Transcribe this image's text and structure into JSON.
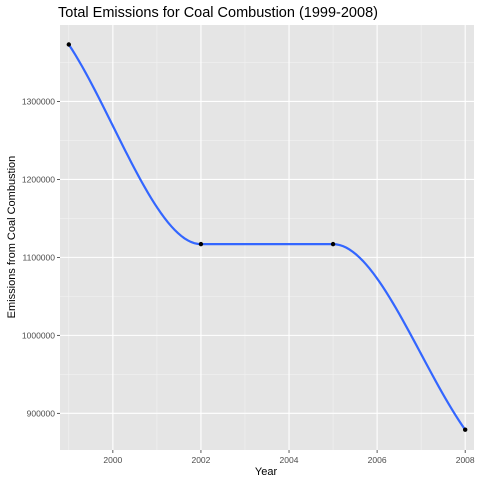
{
  "chart_data": {
    "type": "line",
    "title": "Total Emissions for Coal Combustion (1999-2008)",
    "xlabel": "Year",
    "ylabel": "Emissions from Coal Combustion",
    "x": [
      1999,
      2002,
      2005,
      2008
    ],
    "series": [
      {
        "values": [
          1373000,
          1117000,
          1117000,
          879000
        ]
      }
    ],
    "xlim": [
      1998.8,
      2008.2
    ],
    "ylim": [
      853000,
      1398000
    ],
    "x_ticks": [
      2000,
      2002,
      2004,
      2006,
      2008
    ],
    "x_tick_labels": [
      "2000",
      "2002",
      "2004",
      "2006",
      "2008"
    ],
    "y_ticks": [
      900000,
      1000000,
      1100000,
      1200000,
      1300000
    ],
    "y_tick_labels": [
      "900000",
      "1000000",
      "1100000",
      "1200000",
      "1300000"
    ],
    "grid": true,
    "colors": {
      "panel_background": "#e5e5e5",
      "grid_major": "#ffffff",
      "grid_minor": "#f2f2f2",
      "line": "#3366ff",
      "points": "#000000",
      "tick_text": "#4d4d4d",
      "tick_mark": "#333333"
    }
  }
}
